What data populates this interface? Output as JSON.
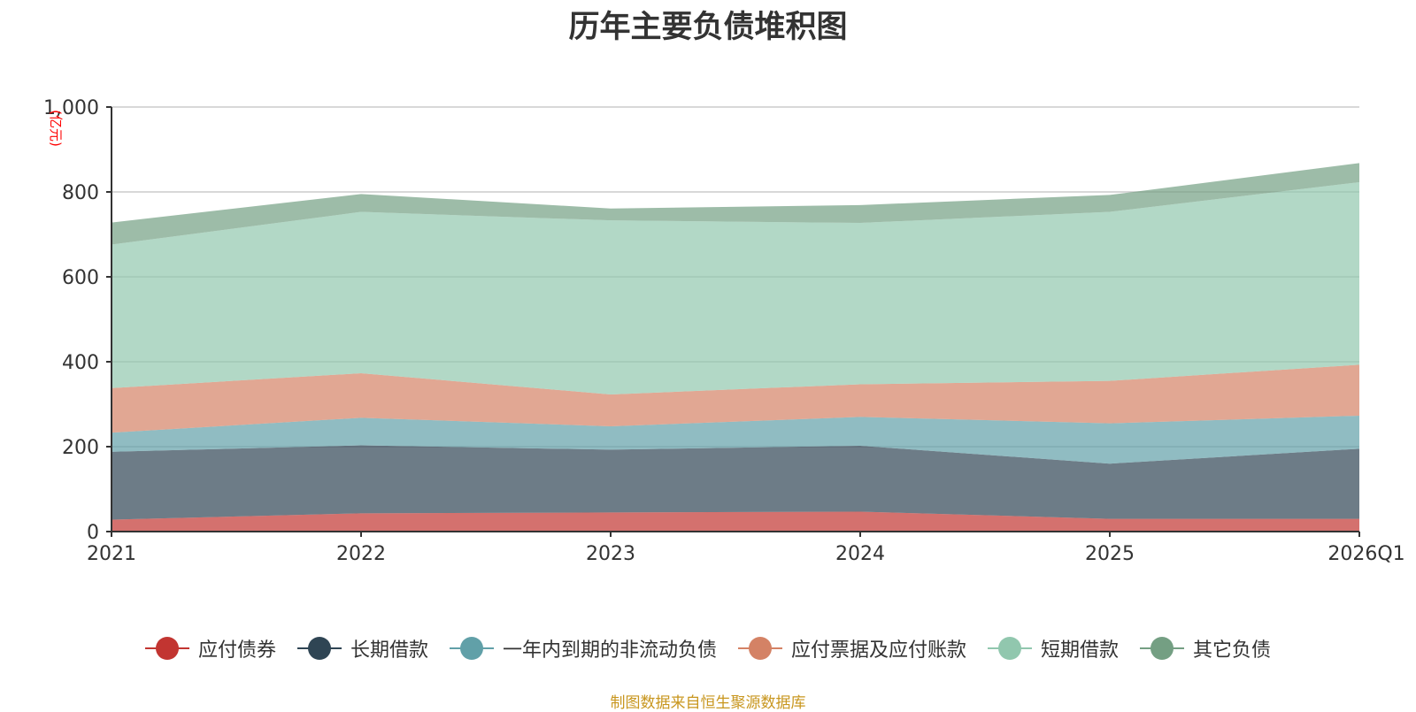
{
  "chart_data": {
    "type": "area",
    "stacked": true,
    "title": "历年主要负债堆积图",
    "ylabel": "亿元",
    "ylabel_display": "(亿元)",
    "ylim": [
      0,
      1000
    ],
    "yticks": [
      0,
      200,
      400,
      600,
      800,
      1000
    ],
    "ytick_labels": [
      "0",
      "200",
      "400",
      "600",
      "800",
      "1,000"
    ],
    "categories": [
      "2021",
      "2022",
      "2023",
      "2024",
      "2025",
      "2026Q1"
    ],
    "series": [
      {
        "name": "应付债券",
        "color": "#c23531",
        "values": [
          28,
          43,
          45,
          47,
          30,
          30
        ]
      },
      {
        "name": "长期借款",
        "color": "#2f4554",
        "values": [
          160,
          160,
          148,
          155,
          130,
          165
        ]
      },
      {
        "name": "一年内到期的非流动负债",
        "color": "#61a0a8",
        "values": [
          45,
          65,
          55,
          68,
          95,
          78
        ]
      },
      {
        "name": "应付票据及应付账款",
        "color": "#d48265",
        "values": [
          105,
          105,
          75,
          77,
          100,
          120
        ]
      },
      {
        "name": "短期借款",
        "color": "#91c7ae",
        "values": [
          338,
          380,
          410,
          380,
          398,
          430
        ]
      },
      {
        "name": "其它负债",
        "color": "#749f83",
        "values": [
          52,
          42,
          28,
          42,
          40,
          45
        ]
      }
    ],
    "grid": true,
    "legend_position": "bottom"
  },
  "source_note": "制图数据来自恒生聚源数据库"
}
